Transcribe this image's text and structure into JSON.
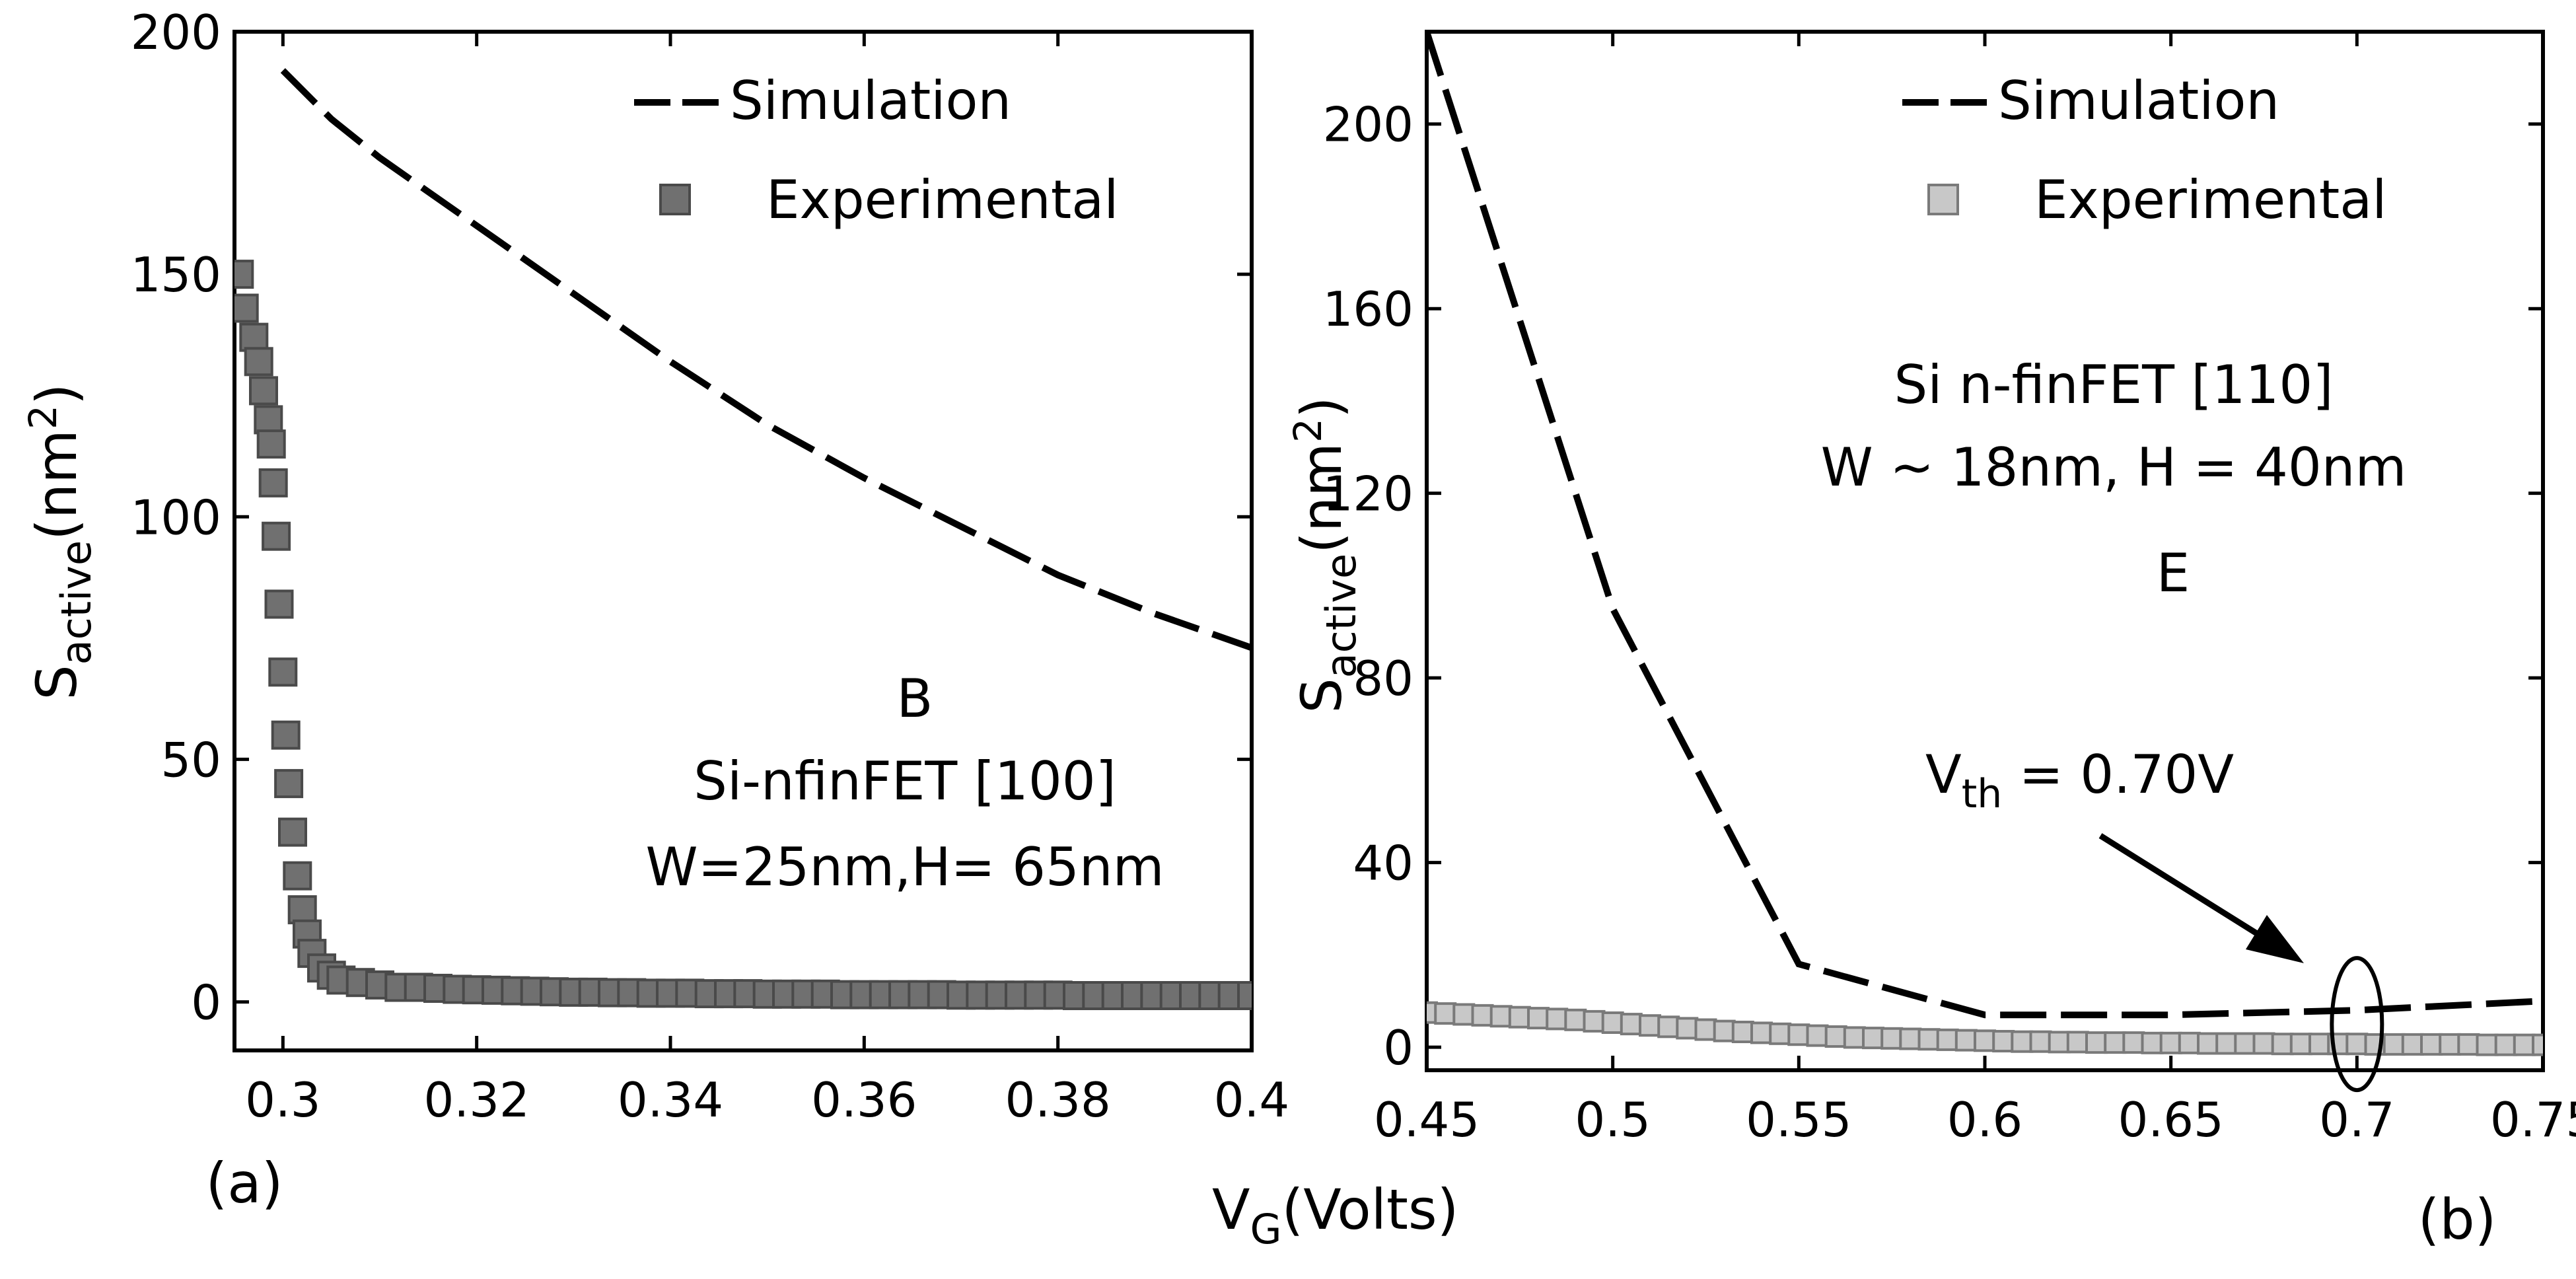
{
  "figure": {
    "xlabel_main": "V",
    "xlabel_sub": "G",
    "xlabel_rest": "(Volts)"
  },
  "chart_data": [
    {
      "type": "line",
      "panel_label": "(a)",
      "ylabel_main": "S",
      "ylabel_sub": "active",
      "ylabel_rest": "(nm",
      "ylabel_sup": "2",
      "ylabel_close": ")",
      "xlim": [
        0.295,
        0.4
      ],
      "ylim": [
        -10,
        200
      ],
      "xticks": [
        0.3,
        0.32,
        0.34,
        0.36,
        0.38,
        0.4
      ],
      "xtick_labels": [
        "0.3",
        "0.32",
        "0.34",
        "0.36",
        "0.38",
        "0.4"
      ],
      "yticks": [
        0,
        50,
        100,
        150,
        200
      ],
      "ytick_labels": [
        "0",
        "50",
        "100",
        "150",
        "200"
      ],
      "legend": {
        "placement": "top-right",
        "entries": [
          "Simulation",
          "Experimental"
        ]
      },
      "annotations": [
        "B",
        "Si-nfinFET [100]",
        "W=25nm,H= 65nm"
      ],
      "series": [
        {
          "name": "Simulation",
          "style": "dashed",
          "color": "#000000",
          "x": [
            0.3,
            0.305,
            0.31,
            0.32,
            0.33,
            0.34,
            0.35,
            0.36,
            0.37,
            0.38,
            0.39,
            0.4
          ],
          "y": [
            192,
            182,
            174,
            160,
            146,
            132,
            119,
            108,
            98,
            88,
            80,
            73
          ]
        },
        {
          "name": "Experimental",
          "style": "square-markers",
          "color": "#707070",
          "x": [
            0.2955,
            0.296,
            0.297,
            0.2975,
            0.298,
            0.2985,
            0.2988,
            0.299,
            0.2993,
            0.2996,
            0.3,
            0.3003,
            0.3006,
            0.301,
            0.3015,
            0.302,
            0.3025,
            0.303,
            0.304,
            0.305,
            0.306,
            0.308,
            0.31,
            0.312,
            0.314,
            0.316,
            0.318,
            0.32,
            0.322,
            0.324,
            0.326,
            0.328,
            0.33,
            0.332,
            0.334,
            0.336,
            0.338,
            0.34,
            0.342,
            0.344,
            0.346,
            0.348,
            0.35,
            0.352,
            0.354,
            0.356,
            0.358,
            0.36,
            0.362,
            0.364,
            0.366,
            0.368,
            0.37,
            0.372,
            0.374,
            0.376,
            0.378,
            0.38,
            0.382,
            0.384,
            0.386,
            0.388,
            0.39,
            0.392,
            0.394,
            0.396,
            0.398,
            0.4
          ],
          "y": [
            150,
            143,
            137,
            132,
            126,
            120,
            115,
            107,
            96,
            82,
            68,
            55,
            45,
            35,
            26,
            19,
            14,
            10,
            7,
            5.5,
            4.5,
            4,
            3.5,
            3,
            3,
            2.8,
            2.6,
            2.5,
            2.4,
            2.3,
            2.2,
            2.1,
            2,
            2,
            1.9,
            1.9,
            1.8,
            1.8,
            1.8,
            1.7,
            1.7,
            1.7,
            1.6,
            1.6,
            1.6,
            1.6,
            1.5,
            1.5,
            1.5,
            1.5,
            1.5,
            1.5,
            1.4,
            1.4,
            1.4,
            1.4,
            1.4,
            1.4,
            1.3,
            1.3,
            1.3,
            1.3,
            1.3,
            1.3,
            1.3,
            1.3,
            1.3,
            1.3
          ]
        }
      ]
    },
    {
      "type": "line",
      "panel_label": "(b)",
      "ylabel_main": "S",
      "ylabel_sub": "active",
      "ylabel_rest": "(nm",
      "ylabel_sup": "2",
      "ylabel_close": ")",
      "xlim": [
        0.45,
        0.75
      ],
      "ylim": [
        -5,
        220
      ],
      "xticks": [
        0.45,
        0.5,
        0.55,
        0.6,
        0.65,
        0.7,
        0.75
      ],
      "xtick_labels": [
        "0.45",
        "0.5",
        "0.55",
        "0.6",
        "0.65",
        "0.7",
        "0.75"
      ],
      "yticks": [
        0,
        40,
        80,
        120,
        160,
        200
      ],
      "ytick_labels": [
        "0",
        "40",
        "80",
        "120",
        "160",
        "200"
      ],
      "legend": {
        "placement": "top-right",
        "entries": [
          "Simulation",
          "Experimental"
        ]
      },
      "annotations": [
        "Si n-finFET [110]",
        "W ~ 18nm, H = 40nm",
        "E"
      ],
      "vth_label_main": "V",
      "vth_label_sub": "th",
      "vth_label_rest": " = 0.70V",
      "vth_x": 0.7,
      "series": [
        {
          "name": "Simulation",
          "style": "dashed",
          "color": "#000000",
          "x": [
            0.45,
            0.5,
            0.55,
            0.6,
            0.65,
            0.7,
            0.75
          ],
          "y": [
            220,
            95,
            18,
            7,
            7,
            8,
            10
          ]
        },
        {
          "name": "Experimental",
          "style": "square-markers",
          "color": "#c8c8c8",
          "x": [
            0.45,
            0.455,
            0.46,
            0.465,
            0.47,
            0.475,
            0.48,
            0.485,
            0.49,
            0.495,
            0.5,
            0.505,
            0.51,
            0.515,
            0.52,
            0.525,
            0.53,
            0.535,
            0.54,
            0.545,
            0.55,
            0.555,
            0.56,
            0.565,
            0.57,
            0.575,
            0.58,
            0.585,
            0.59,
            0.595,
            0.6,
            0.605,
            0.61,
            0.615,
            0.62,
            0.625,
            0.63,
            0.635,
            0.64,
            0.645,
            0.65,
            0.655,
            0.66,
            0.665,
            0.67,
            0.675,
            0.68,
            0.685,
            0.69,
            0.695,
            0.7,
            0.705,
            0.71,
            0.715,
            0.72,
            0.725,
            0.73,
            0.735,
            0.74,
            0.745,
            0.75
          ],
          "y": [
            7.5,
            7.3,
            7.1,
            6.9,
            6.7,
            6.5,
            6.3,
            6.1,
            5.9,
            5.6,
            5.3,
            5.0,
            4.7,
            4.4,
            4.1,
            3.8,
            3.5,
            3.3,
            3.1,
            2.9,
            2.7,
            2.5,
            2.3,
            2.1,
            2.0,
            1.9,
            1.8,
            1.7,
            1.6,
            1.5,
            1.4,
            1.3,
            1.2,
            1.2,
            1.1,
            1.1,
            1.0,
            1.0,
            1.0,
            0.9,
            0.9,
            0.9,
            0.8,
            0.8,
            0.8,
            0.8,
            0.7,
            0.7,
            0.7,
            0.7,
            0.7,
            0.6,
            0.6,
            0.6,
            0.6,
            0.6,
            0.6,
            0.5,
            0.5,
            0.5,
            0.5
          ]
        }
      ]
    }
  ]
}
